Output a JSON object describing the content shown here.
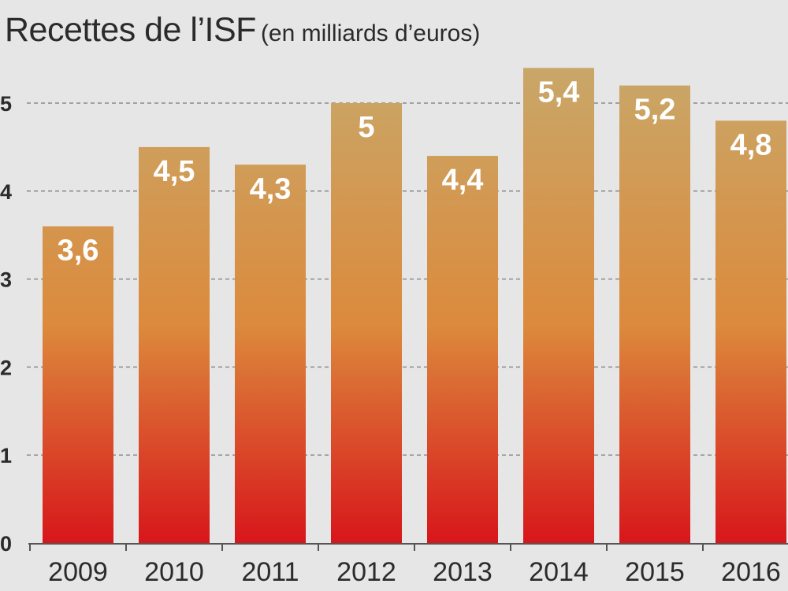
{
  "chart_data": {
    "type": "bar",
    "title": "Recettes de l’ISF",
    "subtitle": "(en milliards d’euros)",
    "categories": [
      "2009",
      "2010",
      "2011",
      "2012",
      "2013",
      "2014",
      "2015",
      "2016"
    ],
    "values": [
      3.6,
      4.5,
      4.3,
      5,
      4.4,
      5.4,
      5.2,
      4.8
    ],
    "value_labels": [
      "3,6",
      "4,5",
      "4,3",
      "5",
      "4,4",
      "5,4",
      "5,2",
      "4,8"
    ],
    "y_ticks": [
      "0",
      "1",
      "2",
      "3",
      "4",
      "5"
    ],
    "ylim": [
      0,
      5.5
    ],
    "grid": true,
    "colors": {
      "bar_top": "#c8a86a",
      "bar_mid": "#dc8a3c",
      "bar_bottom": "#d8161b",
      "background": "#e6e6e6",
      "grid": "#8a8a8a",
      "text": "#2b2b2b"
    }
  }
}
